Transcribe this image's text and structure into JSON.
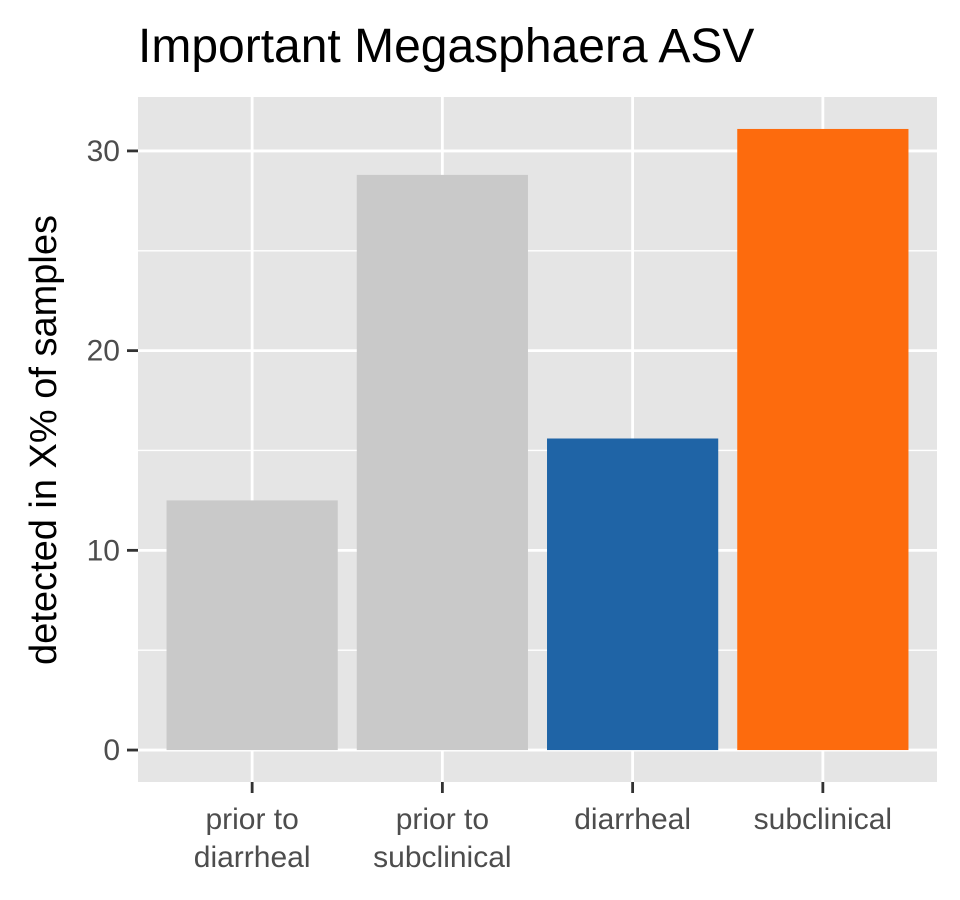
{
  "chart_data": {
    "type": "bar",
    "title": "Important Megasphaera ASV",
    "xlabel": "",
    "ylabel": "detected in X% of samples",
    "categories": [
      [
        "prior to",
        "diarrheal"
      ],
      [
        "prior to",
        "subclinical"
      ],
      [
        "diarrheal"
      ],
      [
        "subclinical"
      ]
    ],
    "values": [
      12.5,
      28.8,
      15.6,
      31.1
    ],
    "colors": [
      "#c9c9c9",
      "#c9c9c9",
      "#1f64a6",
      "#fd6b0d"
    ],
    "ylim": [
      -1.6,
      32.7
    ],
    "yticks": [
      0,
      10,
      20,
      30
    ],
    "grid": true,
    "panel_background": "#e5e5e5",
    "legend": "none"
  }
}
